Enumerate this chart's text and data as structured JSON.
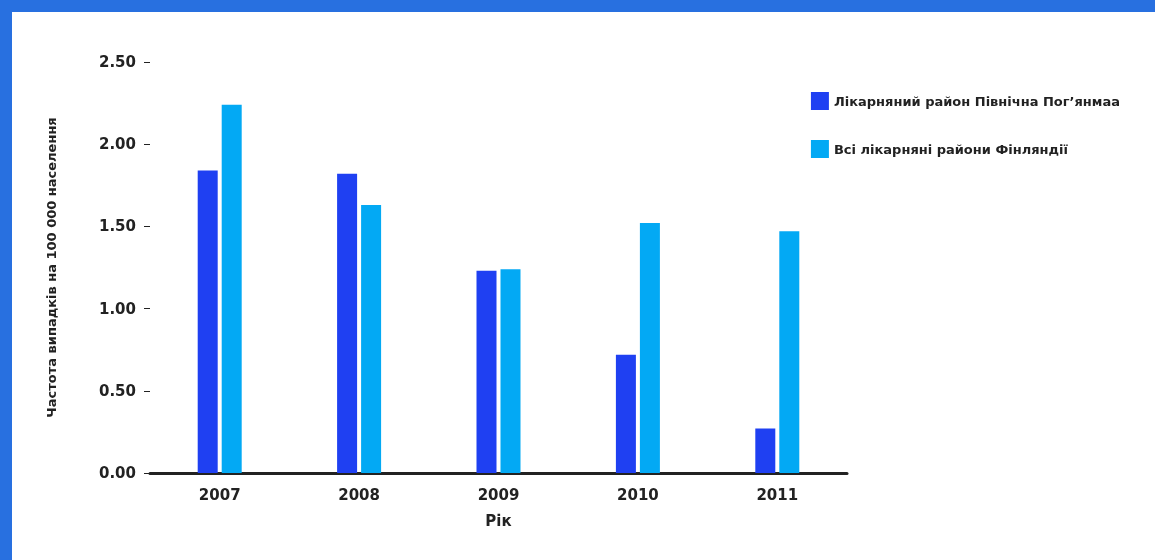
{
  "chart_data": {
    "type": "bar",
    "xlabel": "Рік",
    "ylabel": "Частота випадків на 100 000 населення",
    "categories": [
      "2007",
      "2008",
      "2009",
      "2010",
      "2011"
    ],
    "series": [
      {
        "name": "Лікарняний район Північна Пог’янмаа",
        "color": "#1f40f2",
        "values": [
          1.84,
          1.82,
          1.23,
          0.72,
          0.27
        ]
      },
      {
        "name": "Всі лікарняні райони Фінляндії",
        "color": "#03a9f4",
        "values": [
          2.24,
          1.63,
          1.24,
          1.52,
          1.47
        ]
      }
    ],
    "ylim": [
      0,
      2.5
    ],
    "yticks": [
      {
        "value": 0,
        "label": "0.00"
      },
      {
        "value": 0.5,
        "label": "0.50"
      },
      {
        "value": 1,
        "label": "1.00"
      },
      {
        "value": 1.5,
        "label": "1.50"
      },
      {
        "value": 2,
        "label": "2.00"
      },
      {
        "value": 2.5,
        "label": "2.50"
      }
    ],
    "grid": false,
    "legend": "top right"
  }
}
